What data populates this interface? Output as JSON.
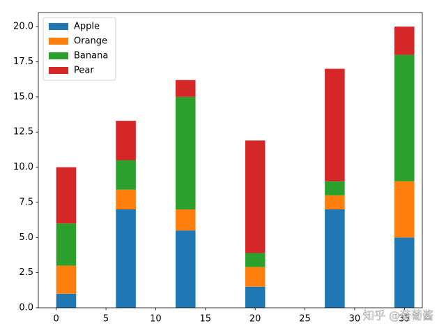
{
  "chart_data": {
    "type": "bar",
    "stacked": true,
    "x": [
      1,
      7,
      13,
      20,
      28,
      35
    ],
    "bar_width": 2,
    "series": [
      {
        "name": "Apple",
        "color": "#1f77b4",
        "values": [
          1,
          7,
          5.5,
          1.5,
          7,
          5
        ]
      },
      {
        "name": "Orange",
        "color": "#ff7f0e",
        "values": [
          2,
          1.4,
          1.5,
          1.4,
          1,
          4
        ]
      },
      {
        "name": "Banana",
        "color": "#2ca02c",
        "values": [
          3,
          2.1,
          8,
          1,
          1,
          9
        ]
      },
      {
        "name": "Pear",
        "color": "#d62728",
        "values": [
          4,
          2.8,
          1.2,
          8,
          8,
          2
        ]
      }
    ],
    "xlim": [
      -1.8,
      36.8
    ],
    "xticks": [
      0,
      5,
      10,
      15,
      20,
      25,
      30,
      35
    ],
    "ylim": [
      0,
      21
    ],
    "yticks": [
      {
        "value": 0,
        "label": "0.0"
      },
      {
        "value": 2.5,
        "label": "2.5"
      },
      {
        "value": 5,
        "label": "5.0"
      },
      {
        "value": 7.5,
        "label": "7.5"
      },
      {
        "value": 10,
        "label": "10.0"
      },
      {
        "value": 12.5,
        "label": "12.5"
      },
      {
        "value": 15,
        "label": "15.0"
      },
      {
        "value": 17.5,
        "label": "17.5"
      },
      {
        "value": 20,
        "label": "20.0"
      }
    ],
    "legend": "upper left",
    "watermark": "知乎 @菊葡酱"
  }
}
